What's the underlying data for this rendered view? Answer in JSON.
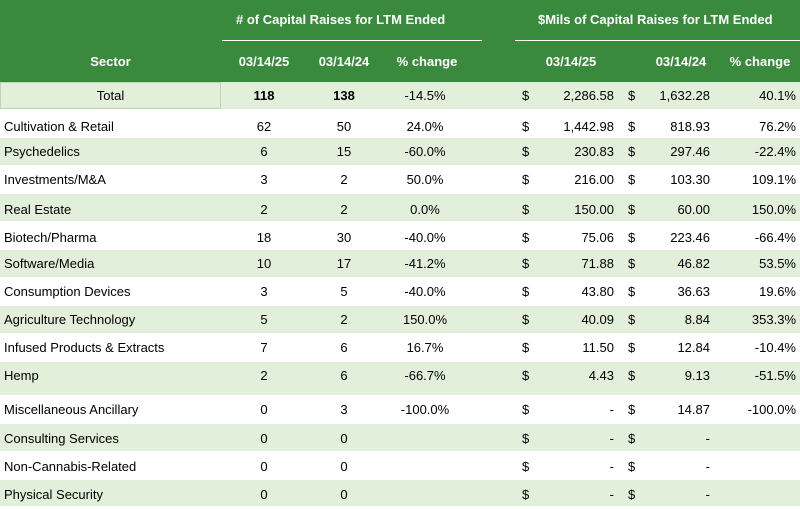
{
  "header": {
    "count_group_title": "# of Capital Raises for LTM  Ended",
    "amount_group_title": "$Mils of Capital Raises for LTM Ended",
    "sector_label": "Sector",
    "count_date1": "03/14/25",
    "count_date2": "03/14/24",
    "count_change": "% change",
    "amount_date1": "03/14/25",
    "amount_date2": "03/14/24",
    "amount_change": "% change"
  },
  "colors": {
    "header_bg": "#3a8a3e",
    "band_light": "#e2efda",
    "band_white": "#ffffff"
  },
  "rows": [
    {
      "sector": "Total",
      "n25": "118",
      "n24": "138",
      "npct": "-14.5%",
      "c1": "$",
      "a25": "2,286.58",
      "c2": "$",
      "a24": "1,632.28",
      "apct": "40.1%"
    },
    {
      "sector": "Cultivation & Retail",
      "n25": "62",
      "n24": "50",
      "npct": "24.0%",
      "c1": "$",
      "a25": "1,442.98",
      "c2": "$",
      "a24": "818.93",
      "apct": "76.2%"
    },
    {
      "sector": "Psychedelics",
      "n25": "6",
      "n24": "15",
      "npct": "-60.0%",
      "c1": "$",
      "a25": "230.83",
      "c2": "$",
      "a24": "297.46",
      "apct": "-22.4%"
    },
    {
      "sector": "Investments/M&A",
      "n25": "3",
      "n24": "2",
      "npct": "50.0%",
      "c1": "$",
      "a25": "216.00",
      "c2": "$",
      "a24": "103.30",
      "apct": "109.1%"
    },
    {
      "sector": "Real Estate",
      "n25": "2",
      "n24": "2",
      "npct": "0.0%",
      "c1": "$",
      "a25": "150.00",
      "c2": "$",
      "a24": "60.00",
      "apct": "150.0%"
    },
    {
      "sector": "Biotech/Pharma",
      "n25": "18",
      "n24": "30",
      "npct": "-40.0%",
      "c1": "$",
      "a25": "75.06",
      "c2": "$",
      "a24": "223.46",
      "apct": "-66.4%"
    },
    {
      "sector": "Software/Media",
      "n25": "10",
      "n24": "17",
      "npct": "-41.2%",
      "c1": "$",
      "a25": "71.88",
      "c2": "$",
      "a24": "46.82",
      "apct": "53.5%"
    },
    {
      "sector": "Consumption Devices",
      "n25": "3",
      "n24": "5",
      "npct": "-40.0%",
      "c1": "$",
      "a25": "43.80",
      "c2": "$",
      "a24": "36.63",
      "apct": "19.6%"
    },
    {
      "sector": "Agriculture Technology",
      "n25": "5",
      "n24": "2",
      "npct": "150.0%",
      "c1": "$",
      "a25": "40.09",
      "c2": "$",
      "a24": "8.84",
      "apct": "353.3%"
    },
    {
      "sector": "Infused Products & Extracts",
      "n25": "7",
      "n24": "6",
      "npct": "16.7%",
      "c1": "$",
      "a25": "11.50",
      "c2": "$",
      "a24": "12.84",
      "apct": "-10.4%"
    },
    {
      "sector": "Hemp",
      "n25": "2",
      "n24": "6",
      "npct": "-66.7%",
      "c1": "$",
      "a25": "4.43",
      "c2": "$",
      "a24": "9.13",
      "apct": "-51.5%"
    },
    {
      "sector": "Miscellaneous Ancillary",
      "n25": "0",
      "n24": "3",
      "npct": "-100.0%",
      "c1": "$",
      "a25": "-",
      "c2": "$",
      "a24": "14.87",
      "apct": "-100.0%"
    },
    {
      "sector": "Consulting Services",
      "n25": "0",
      "n24": "0",
      "npct": "",
      "c1": "$",
      "a25": "-",
      "c2": "$",
      "a24": "-",
      "apct": ""
    },
    {
      "sector": "Non-Cannabis-Related",
      "n25": "0",
      "n24": "0",
      "npct": "",
      "c1": "$",
      "a25": "-",
      "c2": "$",
      "a24": "-",
      "apct": ""
    },
    {
      "sector": "Physical Security",
      "n25": "0",
      "n24": "0",
      "npct": "",
      "c1": "$",
      "a25": "-",
      "c2": "$",
      "a24": "-",
      "apct": ""
    }
  ]
}
